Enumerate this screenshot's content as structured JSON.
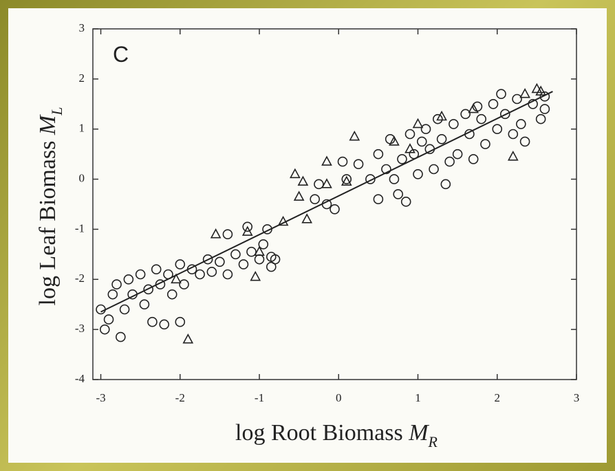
{
  "chart_data": {
    "type": "scatter",
    "panel_label": "C",
    "x_label": {
      "text": "log Root Biomass",
      "symbol": "M",
      "subscript": "R"
    },
    "y_label": {
      "text": "log Leaf Biomass",
      "symbol": "M",
      "subscript": "L"
    },
    "xlim": [
      -3.1,
      3
    ],
    "ylim": [
      -4,
      3
    ],
    "xticks": [
      -3,
      -2,
      -1,
      0,
      1,
      2,
      3
    ],
    "yticks": [
      -4,
      -3,
      -2,
      -1,
      0,
      1,
      2,
      3
    ],
    "fit_line": {
      "x": [
        -3,
        2.7
      ],
      "y": [
        -2.65,
        1.75
      ]
    },
    "series": [
      {
        "marker": "circle",
        "color": "#222222",
        "x": [
          -3,
          -2.95,
          -2.9,
          -2.85,
          -2.8,
          -2.75,
          -2.7,
          -2.65,
          -2.6,
          -2.5,
          -2.45,
          -2.4,
          -2.35,
          -2.3,
          -2.25,
          -2.2,
          -2.15,
          -2.1,
          -2.0,
          -1.95,
          -2.0,
          -1.85,
          -1.75,
          -1.65,
          -1.6,
          -1.5,
          -1.4,
          -1.3,
          -1.2,
          -1.1,
          -1.0,
          -0.95,
          -0.85,
          -0.85,
          -1.15,
          -1.4,
          -0.9,
          -0.8,
          -0.3,
          -0.25,
          -0.15,
          -0.05,
          0.05,
          0.1,
          0.25,
          0.4,
          0.5,
          0.5,
          0.6,
          0.65,
          0.75,
          0.8,
          0.85,
          0.9,
          0.95,
          1.0,
          1.1,
          1.15,
          1.2,
          1.25,
          1.3,
          1.35,
          1.45,
          1.5,
          1.6,
          1.65,
          1.7,
          1.8,
          1.85,
          1.95,
          2.0,
          2.05,
          2.1,
          2.2,
          2.25,
          2.3,
          2.35,
          2.45,
          2.55,
          2.6,
          2.6,
          0.7,
          1.05,
          1.4,
          1.75
        ],
        "y": [
          -2.6,
          -3.0,
          -2.8,
          -2.3,
          -2.1,
          -3.15,
          -2.6,
          -2.0,
          -2.3,
          -1.9,
          -2.5,
          -2.2,
          -2.85,
          -1.8,
          -2.1,
          -2.9,
          -1.9,
          -2.3,
          -1.7,
          -2.1,
          -2.85,
          -1.8,
          -1.9,
          -1.6,
          -1.85,
          -1.65,
          -1.9,
          -1.5,
          -1.7,
          -1.45,
          -1.6,
          -1.3,
          -1.75,
          -1.55,
          -0.95,
          -1.1,
          -1.0,
          -1.6,
          -0.4,
          -0.1,
          -0.5,
          -0.6,
          0.35,
          0.0,
          0.3,
          0.0,
          -0.4,
          0.5,
          0.2,
          0.8,
          -0.3,
          0.4,
          -0.45,
          0.9,
          0.5,
          0.1,
          1.0,
          0.6,
          0.2,
          1.2,
          0.8,
          -0.1,
          1.1,
          0.5,
          1.3,
          0.9,
          0.4,
          1.2,
          0.7,
          1.5,
          1.0,
          1.7,
          1.3,
          0.9,
          1.6,
          1.1,
          0.75,
          1.5,
          1.2,
          1.4,
          1.65,
          0.0,
          0.75,
          0.35,
          1.45
        ]
      },
      {
        "marker": "triangle",
        "color": "#222222",
        "x": [
          -2.05,
          -1.9,
          -1.55,
          -1.15,
          -1.05,
          -1.0,
          -0.7,
          -0.55,
          -0.5,
          -0.45,
          -0.4,
          -0.15,
          -0.15,
          0.1,
          0.2,
          0.7,
          0.9,
          1.0,
          1.3,
          1.7,
          2.2,
          2.35,
          2.5,
          2.55
        ],
        "y": [
          -2.0,
          -3.2,
          -1.1,
          -1.05,
          -1.95,
          -1.45,
          -0.85,
          0.1,
          -0.35,
          -0.05,
          -0.8,
          -0.1,
          0.35,
          -0.05,
          0.85,
          0.75,
          0.6,
          1.1,
          1.25,
          1.4,
          0.45,
          1.7,
          1.8,
          1.75
        ]
      }
    ]
  }
}
